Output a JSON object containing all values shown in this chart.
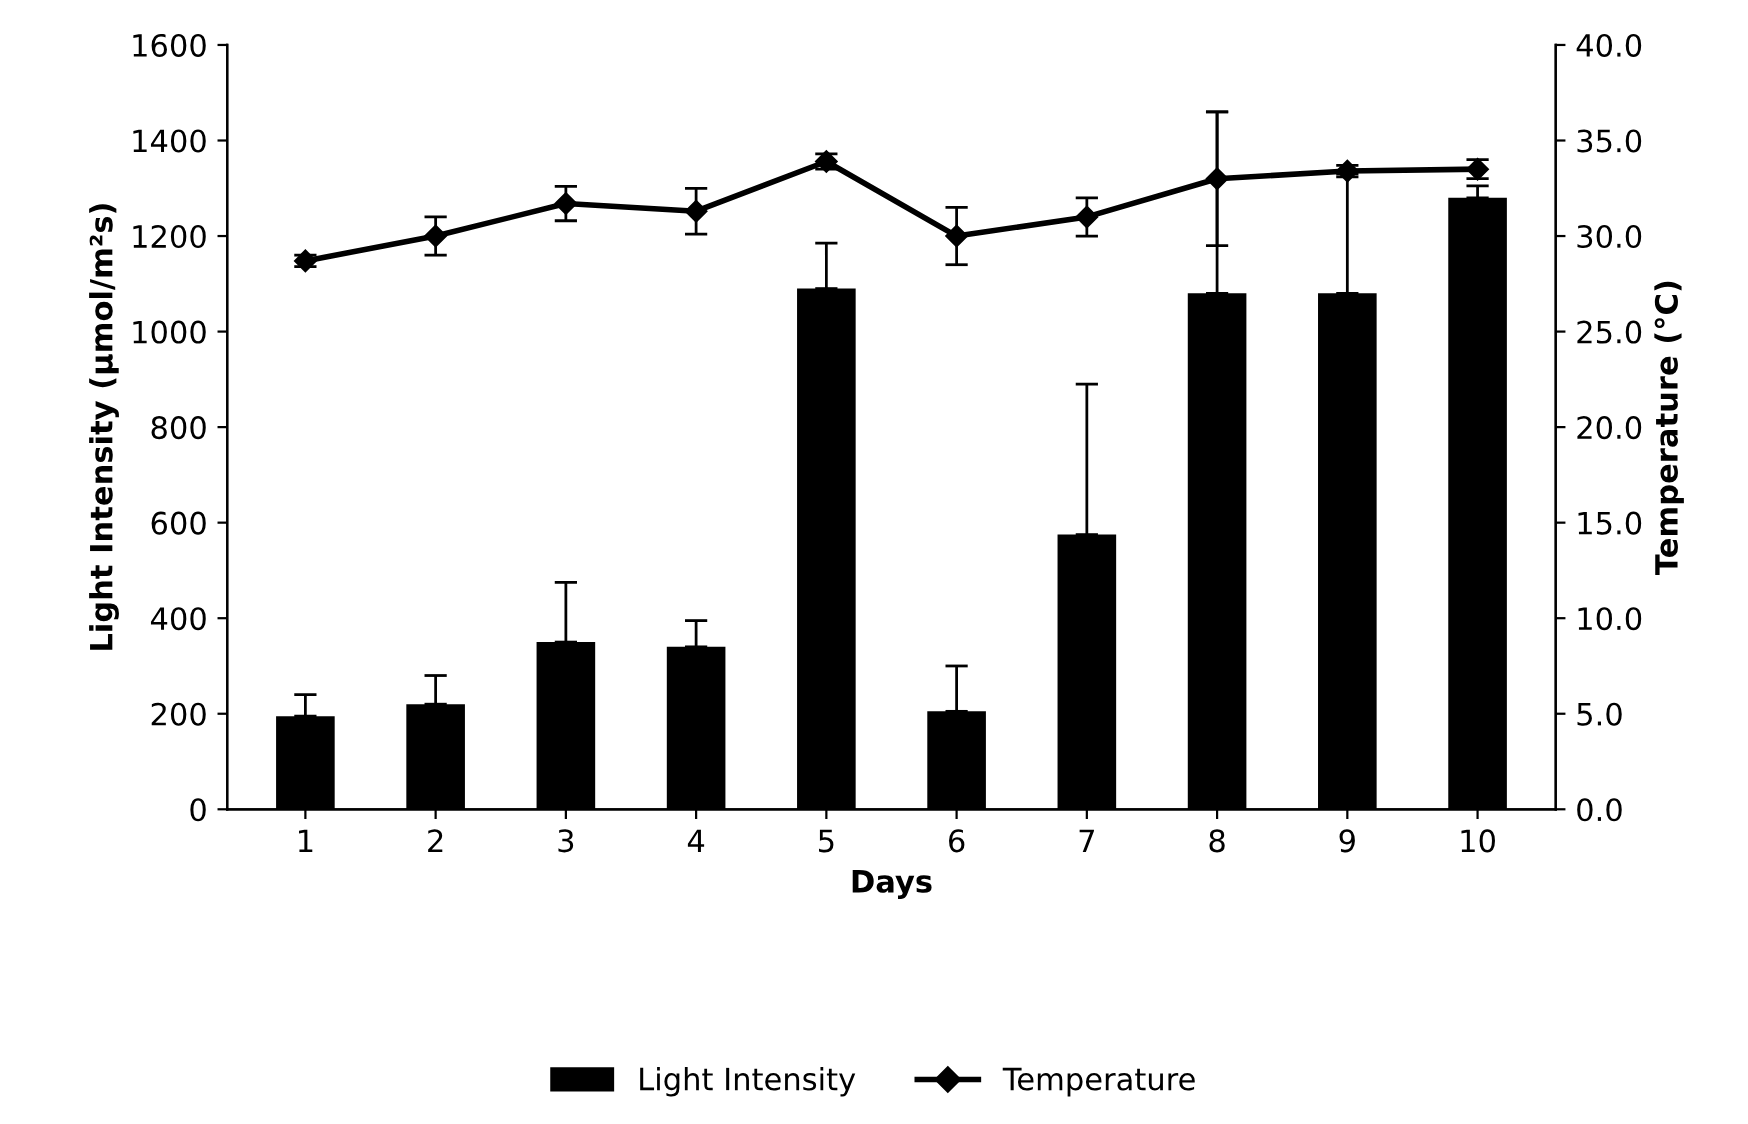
{
  "chart_data": {
    "type": "bar",
    "xlabel": "Days",
    "ylabel": "Light Intensity (µmol/m²s)",
    "y2label": "Temperature (°C)",
    "categories": [
      "1",
      "2",
      "3",
      "4",
      "5",
      "6",
      "7",
      "8",
      "9",
      "10"
    ],
    "series": [
      {
        "name": "Light Intensity",
        "color": "#000000",
        "values": [
          195,
          220,
          350,
          340,
          1090,
          205,
          575,
          1080,
          1080,
          1280
        ],
        "errors": [
          [
            195,
            240
          ],
          [
            220,
            280
          ],
          [
            350,
            475
          ],
          [
            340,
            395
          ],
          [
            1090,
            1185
          ],
          [
            205,
            300
          ],
          [
            575,
            890
          ],
          [
            1080,
            1460
          ],
          [
            1080,
            1330
          ],
          [
            1280,
            1305
          ]
        ]
      },
      {
        "name": "Temperature",
        "type": "line",
        "axis": "y2",
        "color": "#000000",
        "marker": "diamond",
        "values": [
          28.7,
          30.0,
          31.7,
          31.3,
          33.9,
          30.0,
          31.0,
          33.0,
          33.4,
          33.5
        ],
        "errors": [
          0.3,
          1.0,
          0.9,
          1.2,
          0.4,
          1.5,
          1.0,
          3.5,
          0.3,
          0.5
        ]
      }
    ],
    "ylim": [
      0,
      1600
    ],
    "yticks": [
      0,
      200,
      400,
      600,
      800,
      1000,
      1200,
      1400,
      1600
    ],
    "y2lim": [
      0,
      40
    ],
    "y2ticks": [
      {
        "value": 0,
        "label": "0.0"
      },
      {
        "value": 5,
        "label": "5.0"
      },
      {
        "value": 10,
        "label": "10.0"
      },
      {
        "value": 15,
        "label": "15.0"
      },
      {
        "value": 20,
        "label": "20.0"
      },
      {
        "value": 25,
        "label": "25.0"
      },
      {
        "value": 30,
        "label": "30.0"
      },
      {
        "value": 35,
        "label": "35.0"
      },
      {
        "value": 40,
        "label": "40.0"
      }
    ],
    "legend": "bottom",
    "grid": false
  }
}
